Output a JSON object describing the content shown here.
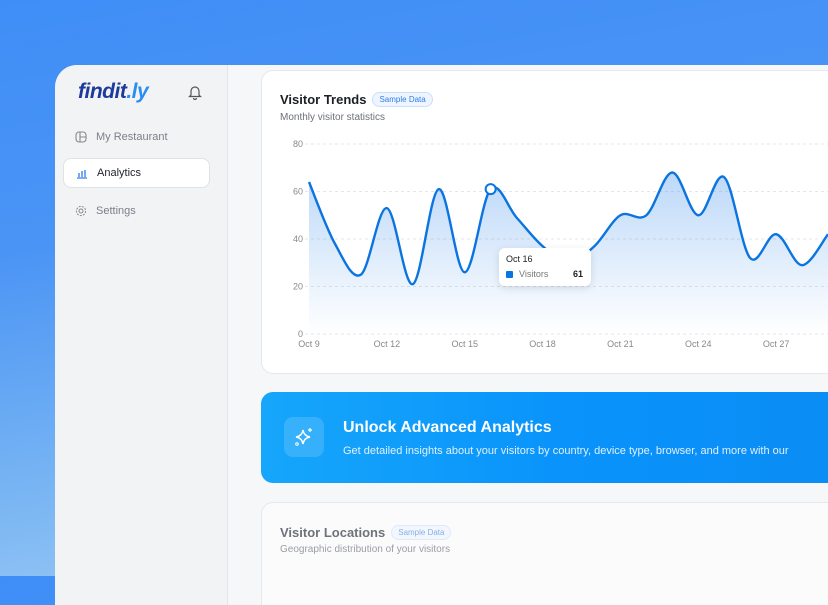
{
  "brand": {
    "logo_main": "findit",
    "logo_accent": ".ly"
  },
  "sidebar": {
    "items": [
      {
        "label": "My Restaurant",
        "icon": "layout-icon"
      },
      {
        "label": "Analytics",
        "icon": "bar-chart-icon",
        "active": true
      },
      {
        "label": "Settings",
        "icon": "gear-icon"
      }
    ]
  },
  "visitor_trends": {
    "title": "Visitor Trends",
    "badge": "Sample Data",
    "subtitle": "Monthly visitor statistics",
    "tooltip": {
      "date": "Oct 16",
      "series": "Visitors",
      "value": "61"
    }
  },
  "banner": {
    "title": "Unlock Advanced Analytics",
    "text": "Get detailed insights about your visitors by country, device type, browser, and more with our"
  },
  "visitor_locations": {
    "title": "Visitor Locations",
    "badge": "Sample Data",
    "subtitle": "Geographic distribution of your visitors"
  },
  "chart_data": {
    "type": "area",
    "series": [
      {
        "name": "Visitors",
        "color": "#0a74e0",
        "x": [
          "Oct 9",
          "Oct 10",
          "Oct 11",
          "Oct 12",
          "Oct 13",
          "Oct 14",
          "Oct 15",
          "Oct 16",
          "Oct 17",
          "Oct 18",
          "Oct 19",
          "Oct 20",
          "Oct 21",
          "Oct 22",
          "Oct 23",
          "Oct 24",
          "Oct 25",
          "Oct 26",
          "Oct 27",
          "Oct 28",
          "Oct 29"
        ],
        "values": [
          64,
          38,
          25,
          53,
          21,
          61,
          26,
          61,
          49,
          37,
          30,
          37,
          50,
          50,
          68,
          50,
          66,
          32,
          42,
          29,
          42
        ]
      }
    ],
    "x_ticks": [
      "Oct 9",
      "Oct 12",
      "Oct 15",
      "Oct 18",
      "Oct 21",
      "Oct 24",
      "Oct 27"
    ],
    "y_ticks": [
      0,
      20,
      40,
      60,
      80
    ],
    "ylim": [
      0,
      80
    ],
    "grid": true,
    "highlighted": "Oct 16"
  }
}
